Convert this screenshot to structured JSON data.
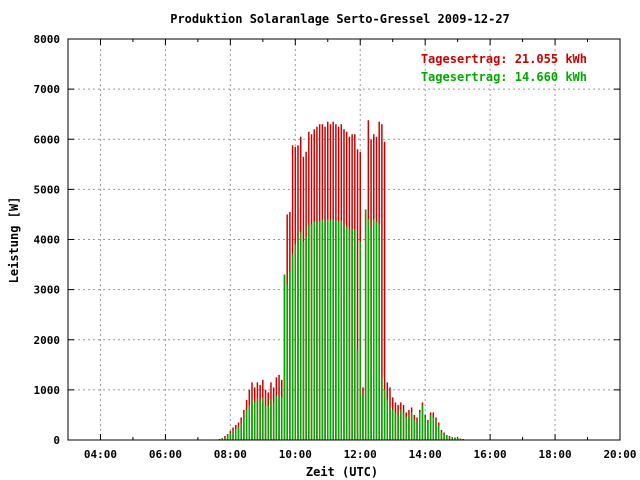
{
  "chart_data": {
    "type": "bar",
    "title": "Produktion Solaranlage Serto-Gressel 2009-12-27",
    "xlabel": "Zeit (UTC)",
    "ylabel": "Leistung [W]",
    "x_range_hours": [
      3,
      20
    ],
    "ylim": [
      0,
      8000
    ],
    "xticks": [
      {
        "h": 4,
        "label": "04:00"
      },
      {
        "h": 6,
        "label": "06:00"
      },
      {
        "h": 8,
        "label": "08:00"
      },
      {
        "h": 10,
        "label": "10:00"
      },
      {
        "h": 12,
        "label": "12:00"
      },
      {
        "h": 14,
        "label": "14:00"
      },
      {
        "h": 16,
        "label": "16:00"
      },
      {
        "h": 18,
        "label": "18:00"
      },
      {
        "h": 20,
        "label": "20:00"
      }
    ],
    "yticks": [
      0,
      1000,
      2000,
      3000,
      4000,
      5000,
      6000,
      7000,
      8000
    ],
    "grid": true,
    "legend_position": "top-right",
    "colors": {
      "red": "#cc0000",
      "green": "#00aa00",
      "axis": "#000000",
      "grid": "#9a9a9a"
    },
    "annotations": [
      {
        "text": "Tagesertrag: 21.055 kWh",
        "color": "#cc0000"
      },
      {
        "text": "Tagesertrag: 14.660 kWh",
        "color": "#00aa00"
      }
    ],
    "x": [
      "07:40",
      "07:45",
      "07:50",
      "07:55",
      "08:00",
      "08:05",
      "08:10",
      "08:15",
      "08:20",
      "08:25",
      "08:30",
      "08:35",
      "08:40",
      "08:45",
      "08:50",
      "08:55",
      "09:00",
      "09:05",
      "09:10",
      "09:15",
      "09:20",
      "09:25",
      "09:30",
      "09:35",
      "09:40",
      "09:45",
      "09:50",
      "09:55",
      "10:00",
      "10:05",
      "10:10",
      "10:15",
      "10:20",
      "10:25",
      "10:30",
      "10:35",
      "10:40",
      "10:45",
      "10:50",
      "10:55",
      "11:00",
      "11:05",
      "11:10",
      "11:15",
      "11:20",
      "11:25",
      "11:30",
      "11:35",
      "11:40",
      "11:45",
      "11:50",
      "11:55",
      "12:00",
      "12:05",
      "12:10",
      "12:15",
      "12:20",
      "12:25",
      "12:30",
      "12:35",
      "12:40",
      "12:45",
      "12:50",
      "12:55",
      "13:00",
      "13:05",
      "13:10",
      "13:15",
      "13:20",
      "13:25",
      "13:30",
      "13:35",
      "13:40",
      "13:45",
      "13:50",
      "13:55",
      "14:00",
      "14:05",
      "14:10",
      "14:15",
      "14:20",
      "14:25",
      "14:30",
      "14:35",
      "14:40",
      "14:45",
      "14:50",
      "14:55",
      "15:00",
      "15:05",
      "15:10",
      "15:15",
      "15:20",
      "15:25",
      "15:30",
      "15:35",
      "15:40"
    ],
    "series": [
      {
        "color": "#cc0000",
        "values": [
          20,
          40,
          80,
          120,
          180,
          250,
          300,
          350,
          450,
          600,
          800,
          1000,
          1150,
          1050,
          1150,
          1100,
          1200,
          1000,
          950,
          1150,
          1050,
          1250,
          1300,
          1200,
          3300,
          4500,
          4550,
          5880,
          5850,
          5880,
          6050,
          5650,
          5750,
          6150,
          6100,
          6200,
          6250,
          6300,
          6300,
          6250,
          6350,
          6300,
          6350,
          6300,
          6250,
          6300,
          6200,
          6150,
          6050,
          6100,
          6100,
          5800,
          5750,
          1050,
          4600,
          6380,
          6000,
          6100,
          6050,
          6350,
          6300,
          5950,
          1150,
          1050,
          850,
          750,
          700,
          750,
          700,
          550,
          600,
          650,
          500,
          450,
          600,
          750,
          500,
          400,
          550,
          550,
          450,
          350,
          200,
          150,
          100,
          80,
          60,
          50,
          40,
          30,
          20,
          10,
          5,
          5,
          5,
          5,
          5
        ]
      },
      {
        "color": "#00aa00",
        "values": [
          10,
          30,
          60,
          90,
          130,
          180,
          220,
          260,
          330,
          450,
          600,
          700,
          800,
          750,
          820,
          780,
          850,
          700,
          680,
          800,
          750,
          880,
          900,
          850,
          3300,
          3100,
          3350,
          3700,
          3900,
          4000,
          4150,
          3950,
          4050,
          4300,
          4300,
          4350,
          4350,
          4380,
          4400,
          4350,
          4400,
          4380,
          4400,
          4380,
          4350,
          4380,
          4300,
          4250,
          4200,
          4200,
          4200,
          1800,
          3950,
          900,
          4600,
          4400,
          4250,
          4400,
          4350,
          4300,
          1250,
          1000,
          800,
          650,
          600,
          550,
          500,
          600,
          550,
          450,
          500,
          550,
          400,
          350,
          550,
          700,
          450,
          350,
          500,
          450,
          400,
          300,
          150,
          120,
          90,
          70,
          55,
          45,
          35,
          25,
          15,
          8,
          5,
          5,
          5,
          5,
          5
        ]
      }
    ]
  }
}
